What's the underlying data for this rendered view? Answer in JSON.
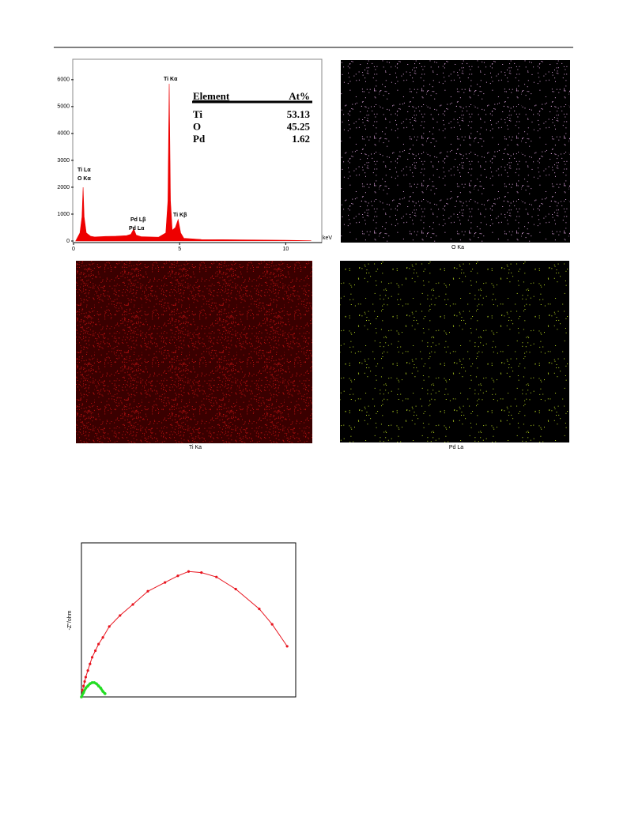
{
  "chart_data": [
    {
      "type": "area",
      "x_label": "keV",
      "x": [
        0.1,
        0.3,
        0.4,
        0.45,
        0.5,
        0.6,
        0.8,
        1,
        1.5,
        2,
        2.5,
        2.7,
        2.84,
        2.95,
        3.2,
        4,
        4.35,
        4.45,
        4.51,
        4.57,
        4.65,
        4.8,
        4.93,
        5.05,
        5.2,
        6,
        8,
        10,
        11.2
      ],
      "values": [
        0,
        300,
        900,
        2000,
        900,
        300,
        180,
        150,
        170,
        180,
        200,
        250,
        450,
        220,
        160,
        140,
        300,
        1500,
        5850,
        1500,
        400,
        500,
        800,
        300,
        100,
        60,
        40,
        25,
        10
      ],
      "color": "#ee0000",
      "xlim": [
        0,
        11.7
      ],
      "ylim": [
        0,
        6760
      ],
      "xticks": [
        0,
        5,
        10
      ],
      "yticks": [
        0,
        1000,
        2000,
        3000,
        4000,
        5000,
        6000
      ],
      "annotations": [
        "Ti Lα",
        "O Kα",
        "Pd Lβ",
        "Pd Lα",
        "Ti Kα",
        "Ti Kβ"
      ],
      "table": {
        "header": [
          "Element",
          "At%"
        ],
        "rows": [
          [
            "Ti",
            53.13
          ],
          [
            "O",
            45.25
          ],
          [
            "Pd",
            1.62
          ]
        ]
      }
    },
    {
      "type": "scatter",
      "y_label": "-Z''/ohm",
      "xlim": [
        0,
        100
      ],
      "ylim": [
        0,
        70
      ],
      "series": [
        {
          "color": "#e8141e",
          "x": [
            0,
            0.5,
            1,
            1.5,
            2,
            3,
            4,
            5,
            6.5,
            8,
            10,
            13,
            18,
            24,
            31,
            39,
            45,
            50,
            56,
            63,
            72,
            83,
            89,
            96
          ],
          "values": [
            0,
            3,
            5,
            7,
            9,
            12,
            15,
            18,
            21,
            24,
            27,
            32,
            37,
            42,
            48,
            52,
            55,
            57,
            56.5,
            54.5,
            49,
            40,
            33,
            23
          ]
        },
        {
          "color": "#22dd22",
          "x": [
            0,
            1,
            2,
            3,
            4,
            5,
            6,
            7,
            8,
            9,
            10,
            11
          ],
          "values": [
            0,
            2,
            4,
            5,
            6,
            6.5,
            6.5,
            6,
            5,
            4,
            2.5,
            1.5
          ]
        }
      ]
    }
  ],
  "maps": [
    "O Ka",
    "Ti Ka",
    "Pd La"
  ]
}
